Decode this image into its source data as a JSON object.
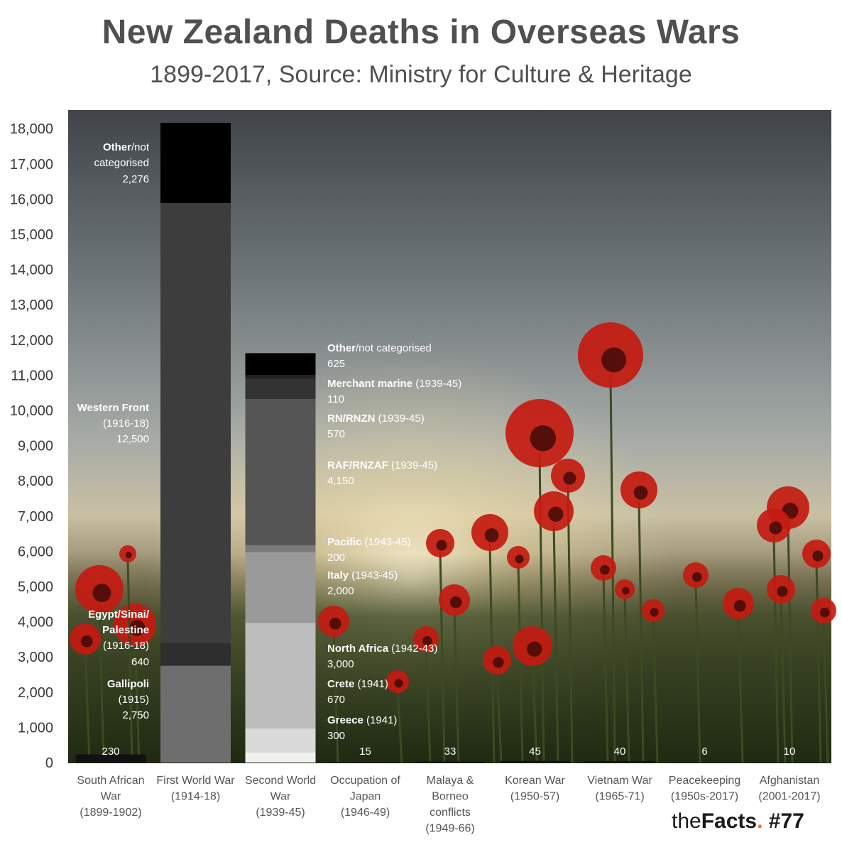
{
  "title": "New Zealand Deaths in Overseas Wars",
  "subtitle": "1899-2017, Source: Ministry for Culture & Heritage",
  "brand": {
    "prefix": "the",
    "name": "Facts",
    "dot": ".",
    "issue": "#77"
  },
  "colors": {
    "other": "#000000",
    "western": "#3d3d3d",
    "egypt": "#2e2e2e",
    "gallipoli": "#6e6e6e",
    "merchant": "#222222",
    "rn": "#333333",
    "raf": "#555555",
    "pacific": "#7a7a7a",
    "italy": "#9a9a9a",
    "africa": "#bdbdbd",
    "crete": "#dadada",
    "greece": "#f0f0f0",
    "sa": "#111111"
  },
  "chart_data": {
    "type": "bar",
    "stacked": true,
    "ylim": [
      0,
      18000
    ],
    "yticks": [
      0,
      1000,
      2000,
      3000,
      4000,
      5000,
      6000,
      7000,
      8000,
      9000,
      10000,
      11000,
      12000,
      13000,
      14000,
      15000,
      16000,
      17000,
      18000
    ],
    "ytick_labels": [
      "0",
      "1,000",
      "2,000",
      "3,000",
      "4,000",
      "5,000",
      "6,000",
      "7,000",
      "8,000",
      "9,000",
      "10,000",
      "11,000",
      "12,000",
      "13,000",
      "14,000",
      "15,000",
      "16,000",
      "17,000",
      "18,000"
    ],
    "categories": [
      {
        "lines": [
          "South African",
          "War",
          "(1899-1902)"
        ]
      },
      {
        "lines": [
          "First World War",
          "(1914-18)"
        ]
      },
      {
        "lines": [
          "Second World",
          "War",
          "(1939-45)"
        ]
      },
      {
        "lines": [
          "Occupation of",
          "Japan",
          "(1946-49)"
        ]
      },
      {
        "lines": [
          "Malaya &",
          "Borneo",
          "conflicts",
          "(1949-66)"
        ]
      },
      {
        "lines": [
          "Korean War",
          "(1950-57)"
        ]
      },
      {
        "lines": [
          "Vietnam War",
          "(1965-71)"
        ]
      },
      {
        "lines": [
          "Peacekeeping",
          "(1950s-2017)"
        ]
      },
      {
        "lines": [
          "Afghanistan",
          "(2001-2017)"
        ]
      }
    ],
    "bars": [
      {
        "segments": [
          {
            "key": "sa",
            "value": 230
          }
        ],
        "total_label": "230"
      },
      {
        "segments": [
          {
            "key": "gallipoli",
            "value": 2750,
            "name": "Gallipoli",
            "period": "(1915)",
            "value_label": "2,750"
          },
          {
            "key": "egypt",
            "value": 640,
            "name": "Egypt/Sinai/",
            "name2": "Palestine",
            "period": "(1916-18)",
            "value_label": "640"
          },
          {
            "key": "western",
            "value": 12500,
            "name": "Western Front",
            "period": "(1916-18)",
            "value_label": "12,500"
          },
          {
            "key": "other",
            "value": 2276,
            "name": "Other",
            "name_rest": "/not",
            "name2": "categorised",
            "value_label": "2,276"
          }
        ]
      },
      {
        "segments": [
          {
            "key": "greece",
            "value": 300,
            "name": "Greece",
            "period": "(1941)",
            "value_label": "300"
          },
          {
            "key": "crete",
            "value": 670,
            "name": "Crete",
            "period": "(1941)",
            "value_label": "670"
          },
          {
            "key": "africa",
            "value": 3000,
            "name": "North Africa",
            "period": "(1942-43)",
            "value_label": "3,000"
          },
          {
            "key": "italy",
            "value": 2000,
            "name": "Italy",
            "period": "(1943-45)",
            "value_label": "2,000"
          },
          {
            "key": "pacific",
            "value": 200,
            "name": "Pacific",
            "period": "(1943-45)",
            "value_label": "200"
          },
          {
            "key": "raf",
            "value": 4150,
            "name": "RAF/RNZAF",
            "period": "(1939-45)",
            "value_label": "4,150"
          },
          {
            "key": "rn",
            "value": 570,
            "name": "RN/RNZN",
            "period": "(1939-45)",
            "value_label": "570"
          },
          {
            "key": "merchant",
            "value": 110,
            "name": "Merchant marine",
            "period": "(1939-45)",
            "value_label": "110"
          },
          {
            "key": "other",
            "value": 625,
            "name": "Other",
            "name_rest": "/not categorised",
            "value_label": "625"
          }
        ]
      },
      {
        "segments": [
          {
            "key": "sa",
            "value": 15
          }
        ],
        "total_label": "15"
      },
      {
        "segments": [
          {
            "key": "sa",
            "value": 33
          }
        ],
        "total_label": "33"
      },
      {
        "segments": [
          {
            "key": "sa",
            "value": 45
          }
        ],
        "total_label": "45"
      },
      {
        "segments": [
          {
            "key": "sa",
            "value": 40
          }
        ],
        "total_label": "40"
      },
      {
        "segments": [
          {
            "key": "sa",
            "value": 6
          }
        ],
        "total_label": "6"
      },
      {
        "segments": [
          {
            "key": "sa",
            "value": 10
          }
        ],
        "total_label": "10"
      }
    ]
  }
}
